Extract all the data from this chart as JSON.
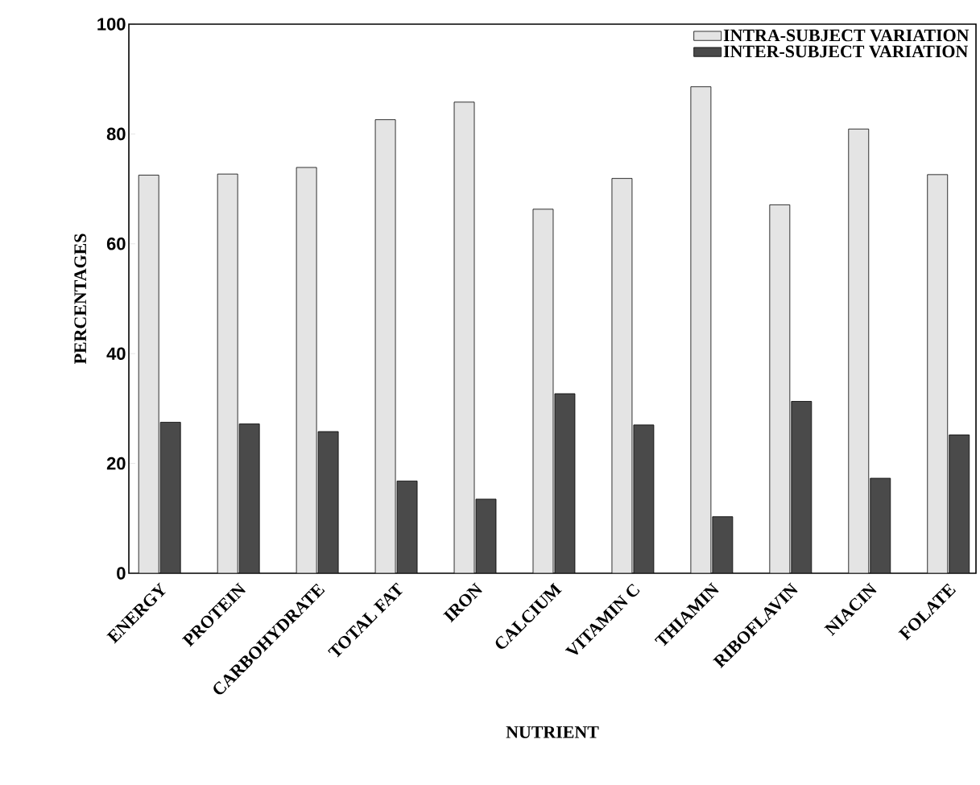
{
  "chart_data": {
    "type": "bar",
    "xlabel": "NUTRIENT",
    "ylabel": "PERCENTAGES",
    "categories": [
      "ENERGY",
      "PROTEIN",
      "CARBOHYDRATE",
      "TOTAL FAT",
      "IRON",
      "CALCIUM",
      "VITAMIN C",
      "THIAMIN",
      "RIBOFLAVIN",
      "NIACIN",
      "FOLATE"
    ],
    "series": [
      {
        "name": "INTRA-SUBJECT VARIATION",
        "color": "#e4e4e4",
        "values": [
          72.5,
          72.7,
          73.9,
          82.6,
          85.8,
          66.3,
          71.9,
          88.6,
          67.1,
          80.9,
          72.6
        ]
      },
      {
        "name": "INTER-SUBJECT VARIATION",
        "color": "#4a4a4a",
        "values": [
          27.5,
          27.2,
          25.8,
          16.8,
          13.5,
          32.7,
          27.0,
          10.3,
          31.3,
          17.3,
          25.2
        ]
      }
    ],
    "ylim": [
      0,
      100
    ],
    "yticks": [
      0,
      20,
      40,
      60,
      80,
      100
    ],
    "legend": "top right",
    "grid": false
  }
}
